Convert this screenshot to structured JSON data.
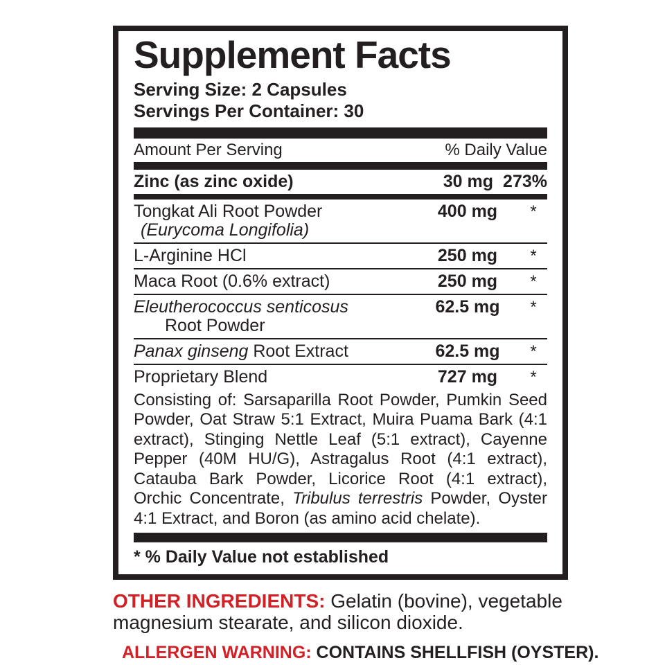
{
  "colors": {
    "ink": "#231f20",
    "accent_red": "#d22027",
    "background": "#ffffff"
  },
  "panel": {
    "title": "Supplement Facts",
    "serving_size": "Serving Size: 2 Capsules",
    "servings_per_container": "Servings Per Container: 30",
    "column_headers": {
      "amount": "Amount Per Serving",
      "daily_value": "% Daily Value"
    },
    "rows": [
      {
        "name": "Zinc (as zinc oxide)",
        "amount": "30 mg",
        "dv": "273%"
      },
      {
        "name": "Tongkat Ali Root Powder",
        "sub_italic": "(Eurycoma Longifolia)",
        "amount": "400 mg",
        "dv": "*"
      },
      {
        "name": "L-Arginine HCl",
        "amount": "250 mg",
        "dv": "*"
      },
      {
        "name": "Maca Root (0.6% extract)",
        "amount": "250 mg",
        "dv": "*"
      },
      {
        "name_italic": "Eleutherococcus senticosus",
        "sub": "Root Powder",
        "amount": "62.5 mg",
        "dv": "*"
      },
      {
        "name_italic": "Panax ginseng",
        "name_rest": " Root Extract",
        "amount": "62.5 mg",
        "dv": "*"
      },
      {
        "name": "Proprietary Blend",
        "amount": "727 mg",
        "dv": "*"
      }
    ],
    "blend_description": {
      "before_italic": "Consisting of: Sarsaparilla Root Powder, Pumkin Seed Powder, Oat Straw 5:1 Extract, Muira Puama Bark (4:1 extract), Stinging Nettle Leaf (5:1 extract), Cayenne Pepper (40M HU/G), Astragalus Root (4:1 extract), Catauba Bark Powder, Licorice Root (4:1 extract), Orchic Concentrate, ",
      "italic": "Tribulus terrestris",
      "after_italic": " Powder, Oyster 4:1 Extract, and Boron (as amino acid chelate)."
    },
    "footnote": "* % Daily Value not established"
  },
  "other_ingredients": {
    "label": "OTHER INGREDIENTS:",
    "text": " Gelatin (bovine), vegetable magnesium stearate, and silicon dioxide."
  },
  "allergen_warning": {
    "label": "ALLERGEN WARNING:",
    "text": " CONTAINS SHELLFISH (OYSTER)."
  }
}
